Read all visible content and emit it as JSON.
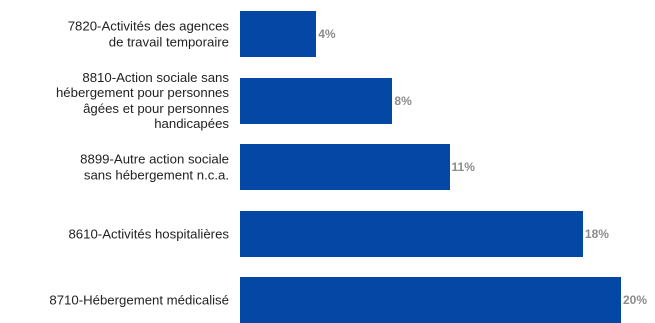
{
  "chart_data": {
    "type": "bar",
    "orientation": "horizontal",
    "categories": [
      [
        "7820-Activités des agences",
        "de travail temporaire"
      ],
      [
        "8810-Action sociale sans",
        "hébergement pour personnes",
        "âgées et pour personnes",
        "handicapées"
      ],
      [
        "8899-Autre action sociale",
        "sans hébergement n.c.a."
      ],
      [
        "8610-Activités hospitalières"
      ],
      [
        "8710-Hébergement médicalisé"
      ]
    ],
    "values": [
      4,
      8,
      11,
      18,
      20
    ],
    "value_labels": [
      "4%",
      "8%",
      "11%",
      "18%",
      "20%"
    ],
    "xlim": [
      0,
      20
    ],
    "grid": false,
    "legend": "none",
    "colors": {
      "bar": "#0547A5",
      "value_label": "#8C8C8C",
      "category_label": "#222222"
    }
  }
}
